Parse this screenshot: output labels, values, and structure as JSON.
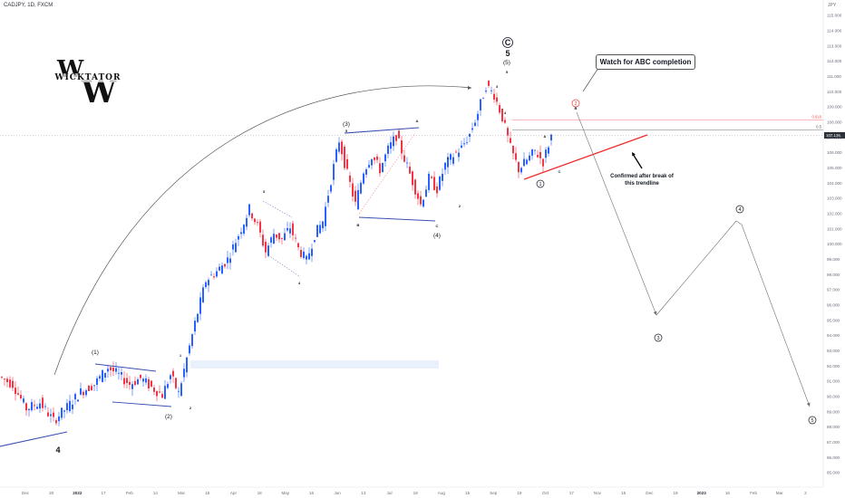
{
  "header": {
    "title": "CADJPY, 1D, FXCM",
    "unit": "JPY"
  },
  "logo": {
    "text": "WICKTATOR",
    "letters": "W"
  },
  "chart_data": {
    "type": "candlestick",
    "symbol": "CADJPY",
    "timeframe": "1D",
    "exchange": "FXCM",
    "ylim": [
      85.0,
      115.0
    ],
    "y_ticks": [
      "115.000",
      "114.000",
      "113.000",
      "112.000",
      "111.000",
      "110.000",
      "109.000",
      "108.000",
      "107.000",
      "106.000",
      "105.000",
      "104.000",
      "103.000",
      "102.000",
      "101.000",
      "100.000",
      "99.000",
      "98.000",
      "97.000",
      "96.000",
      "95.000",
      "94.000",
      "93.000",
      "92.000",
      "91.000",
      "90.000",
      "89.000",
      "88.000",
      "87.000",
      "86.000",
      "85.000"
    ],
    "x_ticks": [
      {
        "label": "Dec",
        "bold": false
      },
      {
        "label": "20",
        "bold": false
      },
      {
        "label": "2022",
        "bold": true
      },
      {
        "label": "17",
        "bold": false
      },
      {
        "label": "Feb",
        "bold": false
      },
      {
        "label": "14",
        "bold": false
      },
      {
        "label": "Mar",
        "bold": false
      },
      {
        "label": "15",
        "bold": false
      },
      {
        "label": "Apr",
        "bold": false
      },
      {
        "label": "18",
        "bold": false
      },
      {
        "label": "May",
        "bold": false
      },
      {
        "label": "16",
        "bold": false
      },
      {
        "label": "Jun",
        "bold": false
      },
      {
        "label": "13",
        "bold": false
      },
      {
        "label": "Jul",
        "bold": false
      },
      {
        "label": "18",
        "bold": false
      },
      {
        "label": "Aug",
        "bold": false
      },
      {
        "label": "15",
        "bold": false
      },
      {
        "label": "Sep",
        "bold": false
      },
      {
        "label": "19",
        "bold": false
      },
      {
        "label": "Oct",
        "bold": false
      },
      {
        "label": "17",
        "bold": false
      },
      {
        "label": "Nov",
        "bold": false
      },
      {
        "label": "15",
        "bold": false
      },
      {
        "label": "Dec",
        "bold": false
      },
      {
        "label": "19",
        "bold": false
      },
      {
        "label": "2023",
        "bold": true
      },
      {
        "label": "16",
        "bold": false
      },
      {
        "label": "Feb",
        "bold": false
      },
      {
        "label": "Mar",
        "bold": false
      },
      {
        "label": "2",
        "bold": false
      }
    ],
    "price_path": [
      {
        "t": 0,
        "p": 91.3
      },
      {
        "t": 5,
        "p": 90.8
      },
      {
        "t": 10,
        "p": 89.2
      },
      {
        "t": 15,
        "p": 89.6
      },
      {
        "t": 20,
        "p": 88.4
      },
      {
        "t": 25,
        "p": 89.3
      },
      {
        "t": 30,
        "p": 90.3
      },
      {
        "t": 35,
        "p": 90.8
      },
      {
        "t": 40,
        "p": 91.9
      },
      {
        "t": 44,
        "p": 91.4
      },
      {
        "t": 48,
        "p": 90.8
      },
      {
        "t": 52,
        "p": 91.2
      },
      {
        "t": 56,
        "p": 90.6
      },
      {
        "t": 60,
        "p": 90.1
      },
      {
        "t": 63,
        "p": 91.4
      },
      {
        "t": 66,
        "p": 90.2
      },
      {
        "t": 69,
        "p": 92.5
      },
      {
        "t": 72,
        "p": 94.8
      },
      {
        "t": 76,
        "p": 97.6
      },
      {
        "t": 80,
        "p": 98.2
      },
      {
        "t": 84,
        "p": 99.0
      },
      {
        "t": 88,
        "p": 100.6
      },
      {
        "t": 92,
        "p": 102.3
      },
      {
        "t": 95,
        "p": 101.2
      },
      {
        "t": 98,
        "p": 99.5
      },
      {
        "t": 101,
        "p": 100.7
      },
      {
        "t": 104,
        "p": 100.3
      },
      {
        "t": 107,
        "p": 101.1
      },
      {
        "t": 110,
        "p": 99.7
      },
      {
        "t": 113,
        "p": 98.9
      },
      {
        "t": 116,
        "p": 100.6
      },
      {
        "t": 119,
        "p": 101.5
      },
      {
        "t": 122,
        "p": 104.2
      },
      {
        "t": 125,
        "p": 106.8
      },
      {
        "t": 128,
        "p": 104.6
      },
      {
        "t": 131,
        "p": 102.6
      },
      {
        "t": 134,
        "p": 104.8
      },
      {
        "t": 137,
        "p": 105.8
      },
      {
        "t": 140,
        "p": 104.9
      },
      {
        "t": 143,
        "p": 106.2
      },
      {
        "t": 146,
        "p": 107.1
      },
      {
        "t": 149,
        "p": 105.6
      },
      {
        "t": 152,
        "p": 104.1
      },
      {
        "t": 155,
        "p": 102.6
      },
      {
        "t": 158,
        "p": 104.3
      },
      {
        "t": 161,
        "p": 103.6
      },
      {
        "t": 164,
        "p": 105.2
      },
      {
        "t": 167,
        "p": 105.8
      },
      {
        "t": 170,
        "p": 106.3
      },
      {
        "t": 173,
        "p": 107.2
      },
      {
        "t": 176,
        "p": 108.6
      },
      {
        "t": 179,
        "p": 110.4
      },
      {
        "t": 182,
        "p": 109.8
      },
      {
        "t": 185,
        "p": 108.3
      },
      {
        "t": 188,
        "p": 106.3
      },
      {
        "t": 191,
        "p": 104.9
      },
      {
        "t": 194,
        "p": 105.5
      },
      {
        "t": 197,
        "p": 106.1
      },
      {
        "t": 200,
        "p": 105.4
      },
      {
        "t": 203,
        "p": 107.1
      }
    ],
    "price_lines": [
      {
        "label": "0.618",
        "value": 108.15,
        "color": "#ef5350"
      },
      {
        "label": "0.5",
        "value": 107.5,
        "color": "#555555"
      }
    ],
    "current_price": {
      "label": "107.126",
      "value": 107.13
    },
    "wave_labels": [
      {
        "text": "4",
        "size": "big"
      },
      {
        "text": "(1)",
        "size": "md"
      },
      {
        "text": "(2)",
        "size": "md"
      },
      {
        "text": "1",
        "size": "sm"
      },
      {
        "text": "2",
        "size": "sm"
      },
      {
        "text": "3",
        "size": "sm"
      },
      {
        "text": "4",
        "size": "sm"
      },
      {
        "text": "(3)",
        "size": "md"
      },
      {
        "text": "5",
        "size": "sm"
      },
      {
        "text": "A",
        "size": "sm"
      },
      {
        "text": "B",
        "size": "sm"
      },
      {
        "text": "C",
        "size": "sm"
      },
      {
        "text": "(4)",
        "size": "md"
      },
      {
        "text": "1",
        "size": "sm"
      },
      {
        "text": "2",
        "size": "sm"
      },
      {
        "text": "3",
        "size": "sm"
      },
      {
        "text": "4",
        "size": "sm"
      },
      {
        "text": "5",
        "size": "sm"
      },
      {
        "text": "(5)",
        "size": "md"
      },
      {
        "text": "5",
        "size": "big"
      },
      {
        "text": "C",
        "size": "big"
      },
      {
        "text": "A",
        "size": "sm"
      },
      {
        "text": "B",
        "size": "sm"
      },
      {
        "text": "C",
        "size": "sm"
      }
    ],
    "circled_labels": [
      "1",
      "2",
      "3",
      "4",
      "5"
    ],
    "annotations": {
      "callout": "Watch for ABC completion",
      "note": "Confirmed after break of this trendline"
    }
  }
}
